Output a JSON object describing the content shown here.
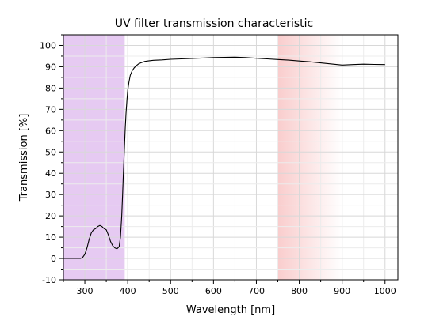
{
  "chart_data": {
    "type": "line",
    "title": "UV filter transmission characteristic",
    "xlabel": "Wavelength [nm]",
    "ylabel": "Transmission [%]",
    "xlim": [
      250,
      1030
    ],
    "ylim": [
      -10,
      105
    ],
    "xticks": [
      300,
      400,
      500,
      600,
      700,
      800,
      900,
      1000
    ],
    "yticks": [
      -10,
      0,
      10,
      20,
      30,
      40,
      50,
      60,
      70,
      80,
      90,
      100
    ],
    "grid": true,
    "regions": [
      {
        "name": "uv-band",
        "x_start": 250,
        "x_end": 393,
        "color": "#ddb8ee",
        "fade": "none"
      },
      {
        "name": "ir-band",
        "x_start": 750,
        "x_end": 900,
        "color": "#f8c4c4",
        "fade": "right"
      }
    ],
    "series": [
      {
        "color": "#000000",
        "x": [
          250,
          280,
          290,
          295,
          300,
          305,
          310,
          315,
          320,
          325,
          330,
          335,
          340,
          345,
          350,
          355,
          360,
          365,
          370,
          375,
          380,
          383,
          386,
          388,
          390,
          392,
          394,
          396,
          398,
          400,
          403,
          406,
          410,
          415,
          420,
          425,
          430,
          440,
          450,
          460,
          480,
          500,
          525,
          550,
          575,
          600,
          625,
          650,
          675,
          700,
          725,
          750,
          775,
          800,
          825,
          850,
          875,
          900,
          925,
          950,
          975,
          1000
        ],
        "y": [
          0,
          0,
          0,
          0.5,
          2,
          5,
          9,
          12,
          13.5,
          14,
          15,
          15.5,
          15,
          14,
          13.5,
          11,
          8,
          6,
          5,
          4.5,
          5.5,
          10,
          20,
          30,
          40,
          50,
          60,
          68,
          74,
          79,
          83,
          86,
          88,
          89.5,
          90.5,
          91.3,
          91.8,
          92.5,
          92.8,
          93,
          93.2,
          93.5,
          93.7,
          93.9,
          94.1,
          94.3,
          94.4,
          94.5,
          94.3,
          94,
          93.7,
          93.4,
          93.1,
          92.7,
          92.3,
          91.8,
          91.3,
          90.8,
          91,
          91.2,
          91.1,
          91
        ]
      }
    ]
  }
}
